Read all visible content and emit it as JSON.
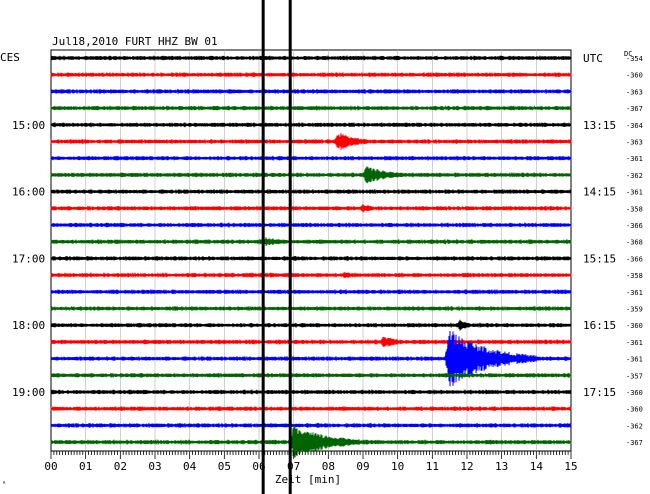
{
  "header": {
    "title": "Jul18,2010   FURT HHZ BW 01",
    "left_zone": "CES",
    "right_zone": "UTC",
    "dc_label": "DC"
  },
  "footer": {
    "xlabel": "Zeit [min]",
    "corner_mark": "ᴬ"
  },
  "chart_data": {
    "type": "line",
    "title": "Jul18,2010   FURT HHZ BW 01",
    "xlabel": "Zeit [min]",
    "x_ticks": [
      "00",
      "01",
      "02",
      "03",
      "04",
      "05",
      "06",
      "07",
      "08",
      "09",
      "10",
      "11",
      "12",
      "13",
      "14",
      "15"
    ],
    "xlim": [
      0,
      15
    ],
    "rows_per_hour": 4,
    "row_count": 24,
    "series_colors": [
      "#000000",
      "#ff0000",
      "#0000ff",
      "#006400"
    ],
    "left_time_labels": [
      {
        "row": 4,
        "label": "15:00"
      },
      {
        "row": 8,
        "label": "16:00"
      },
      {
        "row": 12,
        "label": "17:00"
      },
      {
        "row": 16,
        "label": "18:00"
      },
      {
        "row": 20,
        "label": "19:00"
      }
    ],
    "right_time_labels": [
      {
        "row": 0,
        "label": "UTC"
      },
      {
        "row": 4,
        "label": "13:15"
      },
      {
        "row": 8,
        "label": "14:15"
      },
      {
        "row": 12,
        "label": "15:15"
      },
      {
        "row": 16,
        "label": "16:15"
      },
      {
        "row": 20,
        "label": "17:15"
      }
    ],
    "dc_offsets": [
      "-354",
      "-360",
      "-363",
      "-367",
      "-364",
      "-363",
      "-361",
      "-362",
      "-361",
      "-358",
      "-366",
      "-368",
      "-366",
      "-358",
      "-361",
      "-359",
      "-360",
      "-361",
      "-361",
      "-357",
      "-360",
      "-360",
      "-362",
      "-367"
    ],
    "events": [
      {
        "row": 5,
        "x_min": 8.3,
        "amplitude": 10,
        "duration_min": 1.2
      },
      {
        "row": 7,
        "x_min": 9.1,
        "amplitude": 9,
        "duration_min": 1.5
      },
      {
        "row": 9,
        "x_min": 9.0,
        "amplitude": 5,
        "duration_min": 0.7
      },
      {
        "row": 11,
        "x_min": 6.1,
        "amplitude": 5,
        "duration_min": 1.6
      },
      {
        "row": 13,
        "x_min": 8.5,
        "amplitude": 4,
        "duration_min": 0.6
      },
      {
        "row": 16,
        "x_min": 11.8,
        "amplitude": 6,
        "duration_min": 0.6
      },
      {
        "row": 17,
        "x_min": 9.6,
        "amplitude": 6,
        "duration_min": 1.0
      },
      {
        "row": 18,
        "x_min": 11.5,
        "amplitude": 30,
        "duration_min": 2.5
      },
      {
        "row": 23,
        "x_min": 7.0,
        "amplitude": 16,
        "duration_min": 2.5
      }
    ],
    "annotations": [
      {
        "type": "vertical_line",
        "x_min": 6.12,
        "note": "thick black marker"
      },
      {
        "type": "vertical_line",
        "x_min": 6.9,
        "note": "thick black marker"
      }
    ]
  }
}
